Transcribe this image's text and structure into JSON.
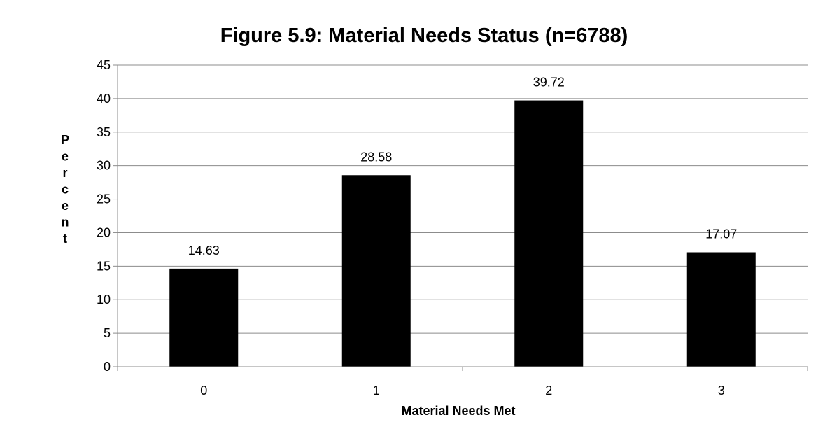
{
  "chart_data": {
    "type": "bar",
    "title": "Figure 5.9: Material Needs Status (n=6788)",
    "xlabel": "Material Needs Met",
    "ylabel": "Percent",
    "categories": [
      "0",
      "1",
      "2",
      "3"
    ],
    "values": [
      14.63,
      28.58,
      39.72,
      17.07
    ],
    "data_labels": [
      "14.63",
      "28.58",
      "39.72",
      "17.07"
    ],
    "ylim": [
      0,
      45
    ],
    "yticks": [
      0,
      5,
      10,
      15,
      20,
      25,
      30,
      35,
      40,
      45
    ],
    "grid": true,
    "bar_color": "#000000",
    "grid_color": "#8c8c8c"
  }
}
